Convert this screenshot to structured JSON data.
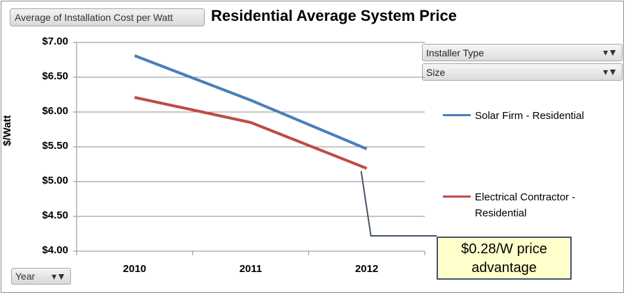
{
  "chart_data": {
    "type": "line",
    "title": "Residential Average System Price",
    "ylabel": "$/Watt",
    "categories": [
      "2010",
      "2011",
      "2012"
    ],
    "ylim": [
      4.0,
      7.0
    ],
    "yticks": [
      "$7.00",
      "$6.50",
      "$6.00",
      "$5.50",
      "$5.00",
      "$4.50",
      "$4.00"
    ],
    "ytick_values": [
      7.0,
      6.5,
      6.0,
      5.5,
      5.0,
      4.5,
      4.0
    ],
    "grid": true,
    "legend_position": "right",
    "series": [
      {
        "name": "Solar Firm - Residential",
        "values": [
          6.81,
          6.17,
          5.47
        ],
        "color": "#4a7ebb"
      },
      {
        "name": "Electrical Contractor - Residential",
        "values": [
          6.21,
          5.85,
          5.19
        ],
        "color": "#be4b48"
      }
    ],
    "annotation": {
      "line1": "$0.28/W price",
      "line2": "advantage"
    }
  },
  "pivot": {
    "value_field": "Average of Installation Cost per Watt",
    "filters": [
      {
        "label": "Installer Type"
      },
      {
        "label": "Size"
      }
    ],
    "axis_field": "Year"
  },
  "icons": {
    "filter": "filter-dropdown-icon"
  }
}
